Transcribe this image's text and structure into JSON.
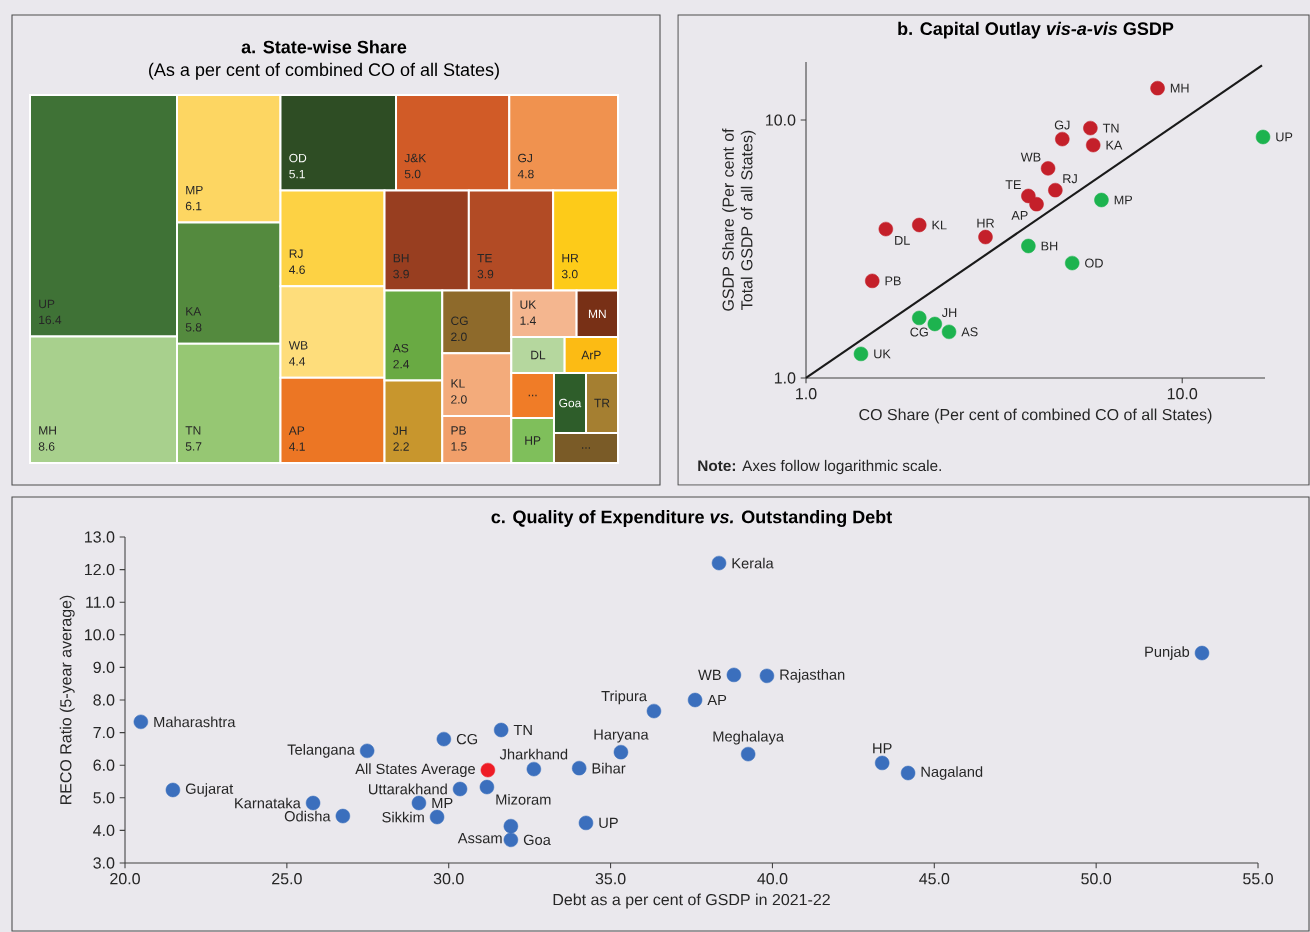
{
  "chart_data": [
    {
      "type": "other",
      "title": "a. State-wise Share",
      "subtitle": "(As a per cent of combined CO of all States)",
      "categories": [
        "UP",
        "MH",
        "MP",
        "KA",
        "TN",
        "OD",
        "J&K",
        "GJ",
        "RJ",
        "WB",
        "AP",
        "BH",
        "TE",
        "HR",
        "AS",
        "JH",
        "CG",
        "KL",
        "PB",
        "UK",
        "MN",
        "DL",
        "ArP",
        "...",
        "HP",
        "Goa",
        "TR",
        "..."
      ],
      "values": [
        16.4,
        8.6,
        6.1,
        5.8,
        5.7,
        5.1,
        5.0,
        4.8,
        4.6,
        4.4,
        4.1,
        3.9,
        3.9,
        3.0,
        2.4,
        2.2,
        2.0,
        2.0,
        1.5,
        1.4,
        null,
        null,
        null,
        null,
        null,
        null,
        null,
        null
      ],
      "value_labels": [
        "16.4",
        "8.6",
        "6.1",
        "5.8",
        "5.7",
        "5.1",
        "5.0",
        "4.8",
        "4.6",
        "4.4",
        "4.1",
        "3.9",
        "3.9",
        "3.0",
        "2.4",
        "2.2",
        "2.0",
        "2.0",
        "1.5",
        "1.4",
        null,
        null,
        null,
        null,
        null,
        null,
        null,
        null
      ],
      "colors": [
        "#3f7236",
        "#a8d08d",
        "#fdd662",
        "#548a3e",
        "#96c773",
        "#2e4d24",
        "#d15b27",
        "#f0924f",
        "#fdd244",
        "#fedd7b",
        "#ec7624",
        "#983e20",
        "#b24b25",
        "#fdcb19",
        "#69aa43",
        "#c8962d",
        "#8e6a2b",
        "#f3ab7b",
        "#f19f6a",
        "#f4b68f",
        "#783016",
        "#b5d79e",
        "#fcbb14",
        "#f07c27",
        "#7fbf5b",
        "#2e5d2a",
        "#a57f31",
        "#7a5b27"
      ]
    },
    {
      "type": "scatter",
      "title": "b. Capital Outlay *vis-a-vis* GSDP",
      "xlabel": "CO Share (Per cent of combined CO of all States)",
      "ylabel": "GSDP Share (Per cent of Total GSDP of all States)",
      "log": "xy",
      "xlim": [
        1,
        16.6
      ],
      "ylim": [
        1,
        16.8
      ],
      "xticks": [
        {
          "value": 1,
          "label": "1.0"
        },
        {
          "value": 10,
          "label": "10.0"
        }
      ],
      "yticks": [
        {
          "value": 1,
          "label": "1.0"
        },
        {
          "value": 10,
          "label": "10.0"
        }
      ],
      "marker": "circle",
      "series": [
        {
          "color": "#c4202a",
          "x": [
            8.6,
            4.8,
            5.7,
            5.8,
            4.4,
            4.6,
            3.9,
            4.1,
            2.0,
            1.63,
            3.0,
            1.5
          ],
          "values": [
            13.3,
            8.44,
            9.31,
            8.0,
            6.5,
            5.35,
            5.08,
            4.72,
            3.92,
            3.78,
            3.52,
            2.38
          ]
        },
        {
          "color": "#1db34f",
          "x": [
            16.4,
            6.1,
            3.9,
            5.1,
            2.0,
            2.2,
            2.4,
            1.4
          ],
          "values": [
            8.6,
            4.9,
            3.25,
            2.79,
            1.71,
            1.62,
            1.51,
            1.24
          ]
        },
        {
          "type": "line",
          "marker": "none",
          "color": "#1a1a1a",
          "x": [
            1,
            16.3
          ],
          "values": [
            1,
            16.3
          ]
        }
      ],
      "annotations": [
        {
          "text": "MH",
          "x": 8.6,
          "y": 13.3
        },
        {
          "text": "GJ",
          "x": 4.8,
          "y": 8.44
        },
        {
          "text": "TN",
          "x": 5.7,
          "y": 9.31
        },
        {
          "text": "KA",
          "x": 5.8,
          "y": 8.0
        },
        {
          "text": "WB",
          "x": 4.4,
          "y": 6.5
        },
        {
          "text": "RJ",
          "x": 4.6,
          "y": 5.35
        },
        {
          "text": "TE",
          "x": 3.9,
          "y": 5.08
        },
        {
          "text": "AP",
          "x": 4.1,
          "y": 4.72
        },
        {
          "text": "KL",
          "x": 2.0,
          "y": 3.92
        },
        {
          "text": "DL",
          "x": 1.63,
          "y": 3.78
        },
        {
          "text": "HR",
          "x": 3.0,
          "y": 3.52
        },
        {
          "text": "PB",
          "x": 1.5,
          "y": 2.38
        },
        {
          "text": "UP",
          "x": 16.4,
          "y": 8.6
        },
        {
          "text": "MP",
          "x": 6.1,
          "y": 4.9
        },
        {
          "text": "BH",
          "x": 3.9,
          "y": 3.25
        },
        {
          "text": "OD",
          "x": 5.1,
          "y": 2.79
        },
        {
          "text": "CG",
          "x": 2.0,
          "y": 1.71
        },
        {
          "text": "JH",
          "x": 2.2,
          "y": 1.62
        },
        {
          "text": "AS",
          "x": 2.4,
          "y": 1.51
        },
        {
          "text": "UK",
          "x": 1.4,
          "y": 1.24
        },
        "**Note:** Axes follow logarithmic scale."
      ]
    },
    {
      "type": "scatter",
      "title": "c. Quality of Expenditure *vs.* Outstanding Debt",
      "xlabel": "Debt as a per cent of GSDP in 2021-22",
      "ylabel": "RECO Ratio (5-year average)",
      "xlim": [
        20,
        55
      ],
      "ylim": [
        3,
        13
      ],
      "xticks": [
        {
          "value": 20,
          "label": "20.0"
        },
        {
          "value": 25,
          "label": "25.0"
        },
        {
          "value": 30,
          "label": "30.0"
        },
        {
          "value": 35,
          "label": "35.0"
        },
        {
          "value": 40,
          "label": "40.0"
        },
        {
          "value": 45,
          "label": "45.0"
        },
        {
          "value": 50,
          "label": "50.0"
        },
        {
          "value": 55,
          "label": "55.0"
        }
      ],
      "yticks": [
        {
          "value": 3,
          "label": "3.0"
        },
        {
          "value": 4,
          "label": "4.0"
        },
        {
          "value": 5,
          "label": "5.0"
        },
        {
          "value": 6,
          "label": "6.0"
        },
        {
          "value": 7,
          "label": "7.0"
        },
        {
          "value": 8,
          "label": "8.0"
        },
        {
          "value": 9,
          "label": "9.0"
        },
        {
          "value": 10,
          "label": "10.0"
        },
        {
          "value": 11,
          "label": "11.0"
        },
        {
          "value": 12,
          "label": "12.0"
        },
        {
          "value": 13,
          "label": "13.0"
        }
      ],
      "marker": "circle",
      "series": [
        {
          "color": "#3b6fbd",
          "x": [
            38.35,
            53.27,
            38.81,
            39.83,
            37.61,
            36.34,
            20.49,
            31.62,
            29.85,
            27.48,
            35.32,
            39.25,
            32.63,
            34.03,
            43.39,
            44.19,
            21.48,
            30.35,
            31.18,
            25.81,
            29.08,
            26.73,
            29.64,
            31.92,
            34.24,
            31.92
          ],
          "values": [
            12.2,
            9.44,
            8.77,
            8.74,
            8.0,
            7.66,
            7.33,
            7.08,
            6.8,
            6.44,
            6.4,
            6.34,
            5.88,
            5.91,
            6.07,
            5.76,
            5.24,
            5.27,
            5.33,
            4.84,
            4.84,
            4.44,
            4.41,
            4.13,
            4.23,
            3.71
          ]
        },
        {
          "color": "#ee1c25",
          "x": [
            31.21
          ],
          "values": [
            5.85
          ]
        }
      ],
      "annotations": [
        {
          "text": "Kerala",
          "x": 38.35,
          "y": 12.2
        },
        {
          "text": "Punjab",
          "x": 53.27,
          "y": 9.44
        },
        {
          "text": "WB",
          "x": 38.81,
          "y": 8.77
        },
        {
          "text": "Rajasthan",
          "x": 39.83,
          "y": 8.74
        },
        {
          "text": "AP",
          "x": 37.61,
          "y": 8.0
        },
        {
          "text": "Tripura",
          "x": 36.34,
          "y": 7.66
        },
        {
          "text": "Maharashtra",
          "x": 20.49,
          "y": 7.33
        },
        {
          "text": "TN",
          "x": 31.62,
          "y": 7.08
        },
        {
          "text": "CG",
          "x": 29.85,
          "y": 6.8
        },
        {
          "text": "Telangana",
          "x": 27.48,
          "y": 6.44
        },
        {
          "text": "Haryana",
          "x": 35.32,
          "y": 6.4
        },
        {
          "text": "Meghalaya",
          "x": 39.25,
          "y": 6.34
        },
        {
          "text": "All States Average",
          "x": 31.21,
          "y": 5.85
        },
        {
          "text": "Jharkhand",
          "x": 32.63,
          "y": 5.88
        },
        {
          "text": "Bihar",
          "x": 34.03,
          "y": 5.91
        },
        {
          "text": "HP",
          "x": 43.39,
          "y": 6.07
        },
        {
          "text": "Nagaland",
          "x": 44.19,
          "y": 5.76
        },
        {
          "text": "Gujarat",
          "x": 21.48,
          "y": 5.24
        },
        {
          "text": "Uttarakhand",
          "x": 30.35,
          "y": 5.27
        },
        {
          "text": "Mizoram",
          "x": 31.18,
          "y": 5.33
        },
        {
          "text": "Karnataka",
          "x": 25.81,
          "y": 4.84
        },
        {
          "text": "MP",
          "x": 29.08,
          "y": 4.84
        },
        {
          "text": "Odisha",
          "x": 26.73,
          "y": 4.44
        },
        {
          "text": "Sikkim",
          "x": 29.64,
          "y": 4.41
        },
        {
          "text": "Assam",
          "x": 31.92,
          "y": 4.13
        },
        {
          "text": "UP",
          "x": 34.24,
          "y": 4.23
        },
        {
          "text": "Goa",
          "x": 31.92,
          "y": 3.71
        }
      ]
    }
  ]
}
